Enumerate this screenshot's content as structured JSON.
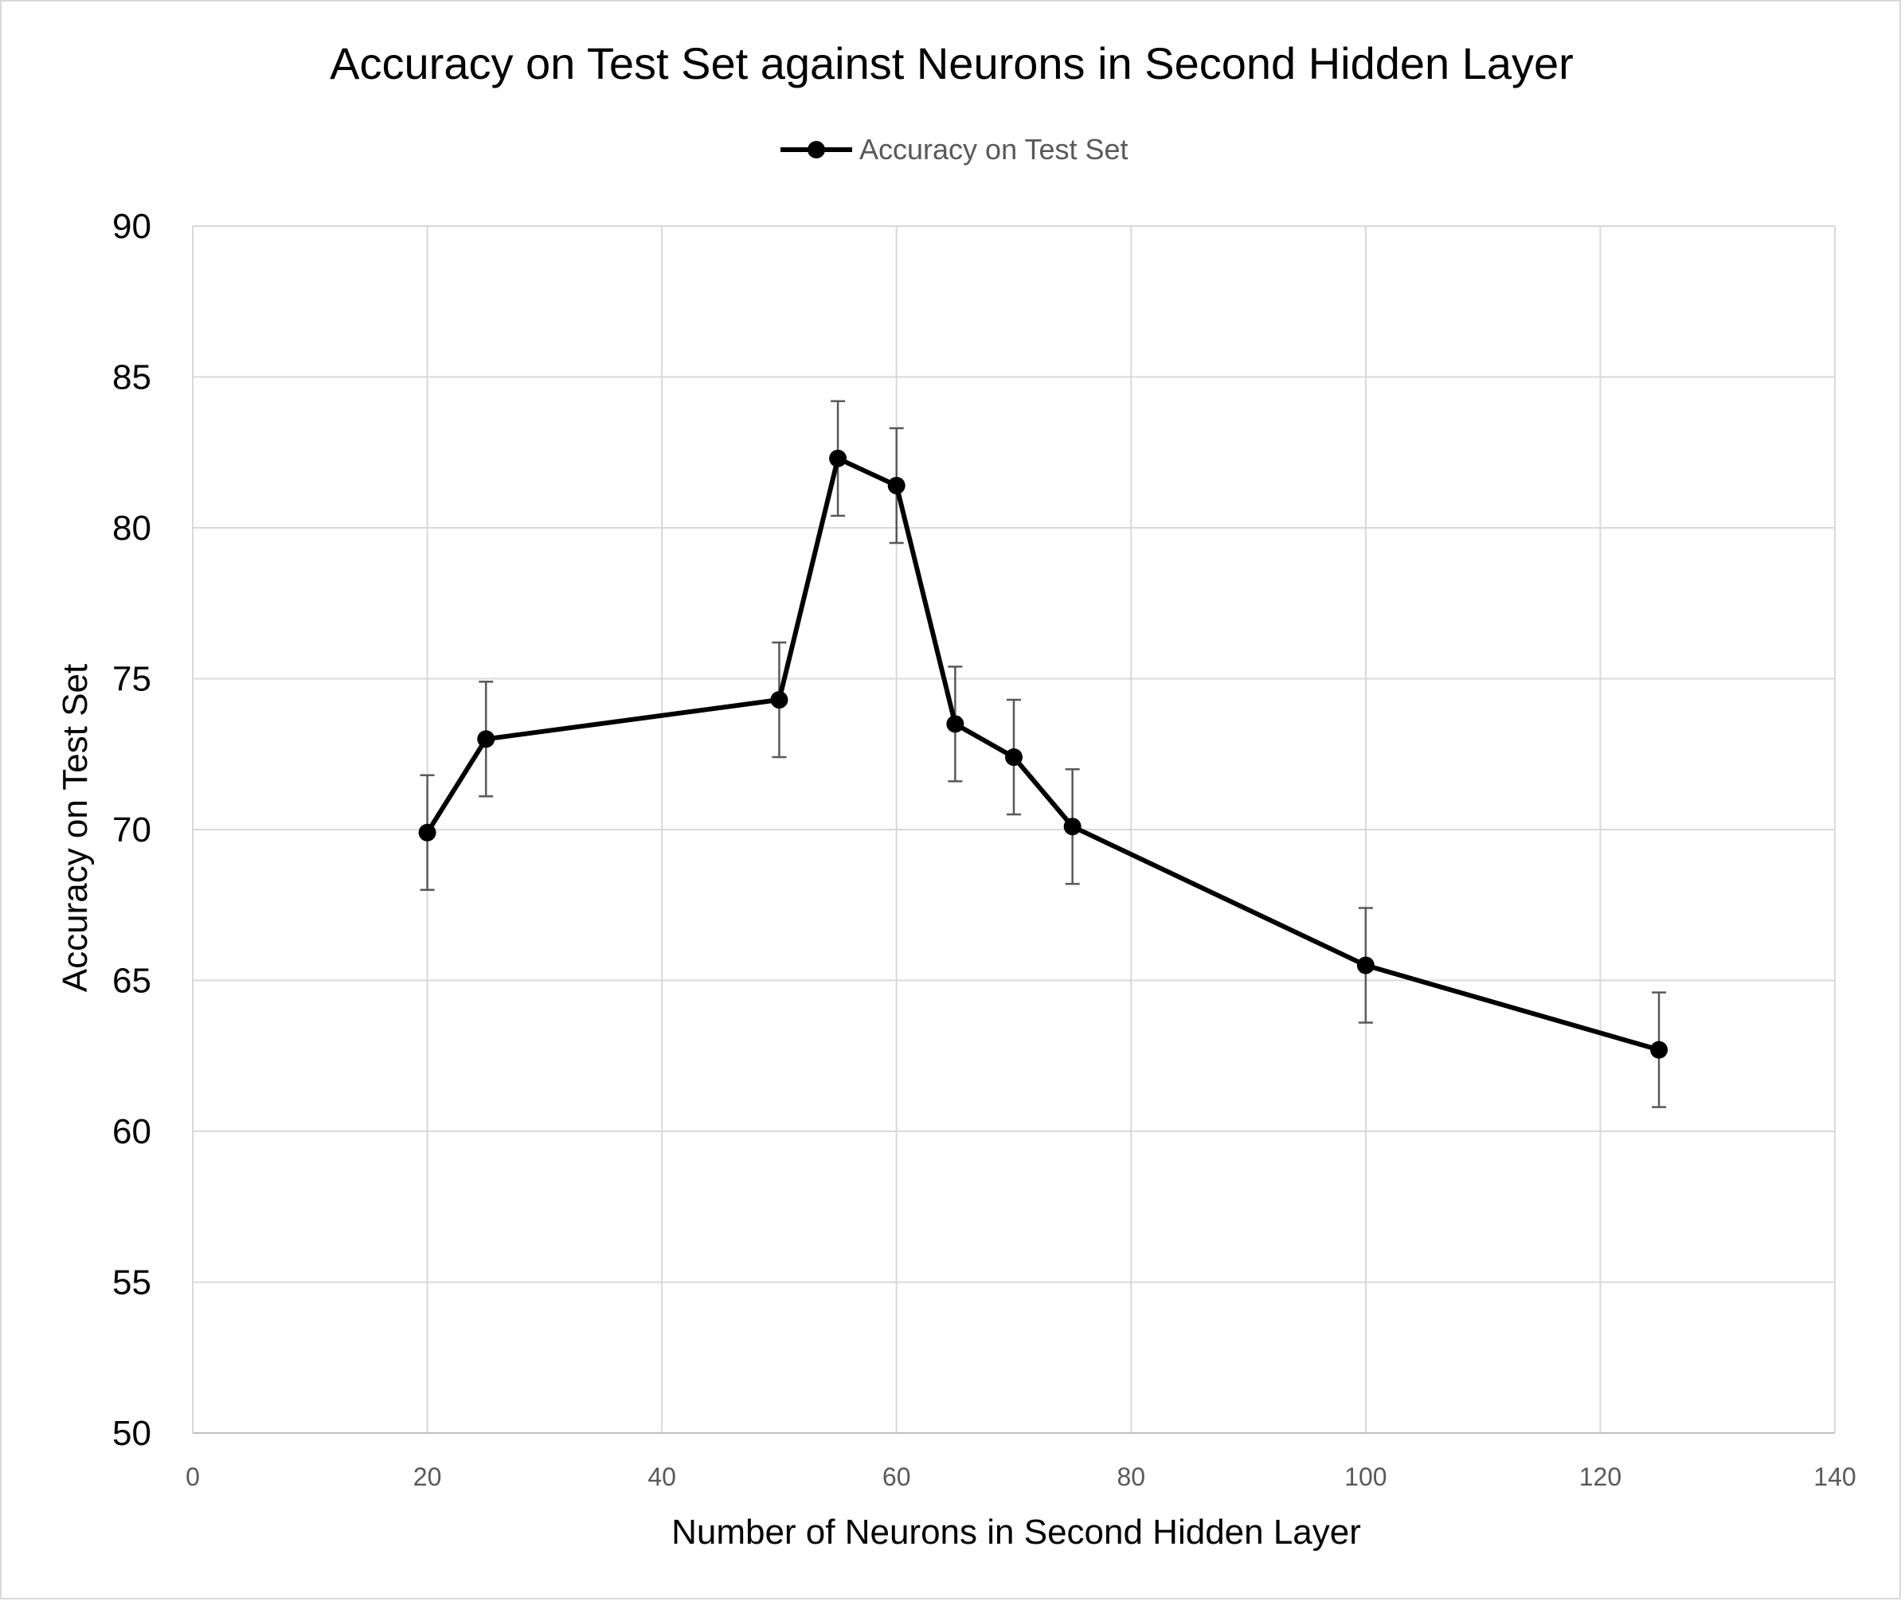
{
  "chart_data": {
    "type": "line",
    "title": "Accuracy on Test Set against Neurons in Second Hidden Layer",
    "xlabel": "Number of Neurons in Second Hidden Layer",
    "ylabel": "Accuracy on Test Set",
    "xlim": [
      0,
      140
    ],
    "ylim": [
      50,
      90
    ],
    "xticks": [
      0,
      20,
      40,
      60,
      80,
      100,
      120,
      140
    ],
    "yticks": [
      50,
      55,
      60,
      65,
      70,
      75,
      80,
      85,
      90
    ],
    "grid": true,
    "legend_position": "top-center",
    "series": [
      {
        "name": "Accuracy on Test Set",
        "color": "#000000",
        "marker": "circle",
        "x": [
          20,
          25,
          50,
          55,
          60,
          65,
          70,
          75,
          100,
          125
        ],
        "y": [
          69.9,
          73.0,
          74.3,
          82.3,
          81.4,
          73.5,
          72.4,
          70.1,
          65.5,
          62.7
        ],
        "error_plus": [
          1.9,
          1.9,
          1.9,
          1.9,
          1.9,
          1.9,
          1.9,
          1.9,
          1.9,
          1.9
        ],
        "error_minus": [
          1.9,
          1.9,
          1.9,
          1.9,
          1.9,
          1.9,
          1.9,
          1.9,
          1.9,
          1.9
        ]
      }
    ]
  }
}
